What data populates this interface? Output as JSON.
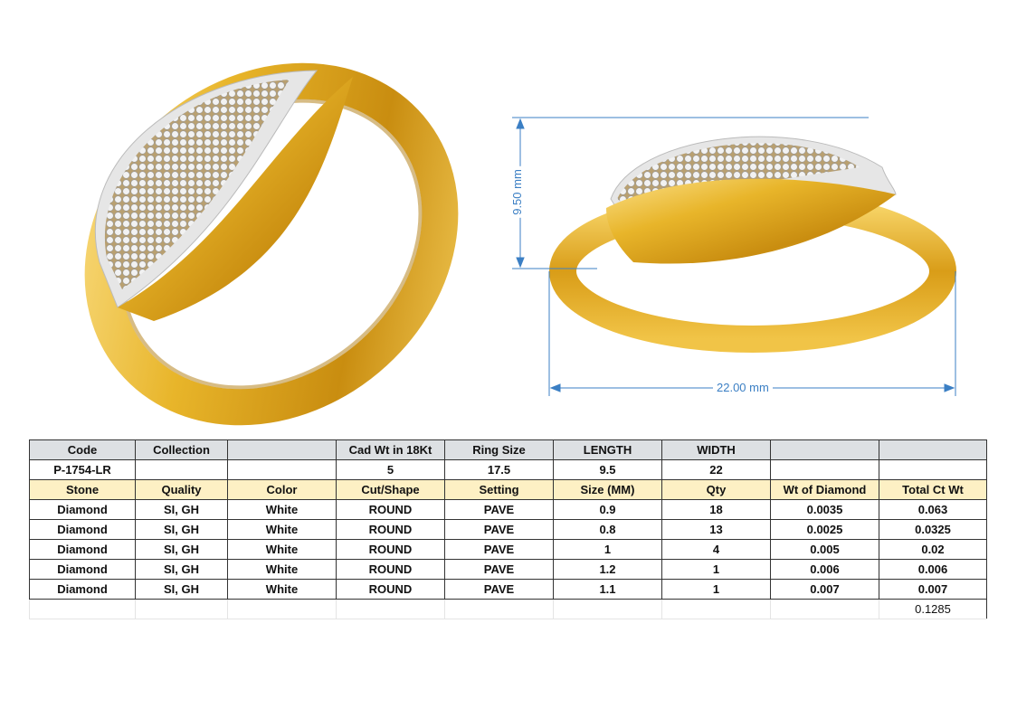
{
  "dimensions": {
    "height": "9.50 mm",
    "width": "22.00 mm"
  },
  "colors": {
    "gold": "#e8b52a",
    "dimension_line": "#3b7fc4",
    "header_gray": "#dde0e3",
    "header_yellow": "#fdf0c4"
  },
  "table": {
    "header1": [
      "Code",
      "Collection",
      "",
      "Cad Wt in 18Kt",
      "Ring Size",
      "LENGTH",
      "WIDTH",
      "",
      ""
    ],
    "values1": [
      "P-1754-LR",
      "",
      "",
      "5",
      "17.5",
      "9.5",
      "22",
      "",
      ""
    ],
    "header2": [
      "Stone",
      "Quality",
      "Color",
      "Cut/Shape",
      "Setting",
      "Size (MM)",
      "Qty",
      "Wt of Diamond",
      "Total Ct Wt"
    ],
    "rows": [
      [
        "Diamond",
        "SI, GH",
        "White",
        "ROUND",
        "PAVE",
        "0.9",
        "18",
        "0.0035",
        "0.063"
      ],
      [
        "Diamond",
        "SI, GH",
        "White",
        "ROUND",
        "PAVE",
        "0.8",
        "13",
        "0.0025",
        "0.0325"
      ],
      [
        "Diamond",
        "SI, GH",
        "White",
        "ROUND",
        "PAVE",
        "1",
        "4",
        "0.005",
        "0.02"
      ],
      [
        "Diamond",
        "SI, GH",
        "White",
        "ROUND",
        "PAVE",
        "1.2",
        "1",
        "0.006",
        "0.006"
      ],
      [
        "Diamond",
        "SI, GH",
        "White",
        "ROUND",
        "PAVE",
        "1.1",
        "1",
        "0.007",
        "0.007"
      ]
    ],
    "total": "0.1285"
  }
}
